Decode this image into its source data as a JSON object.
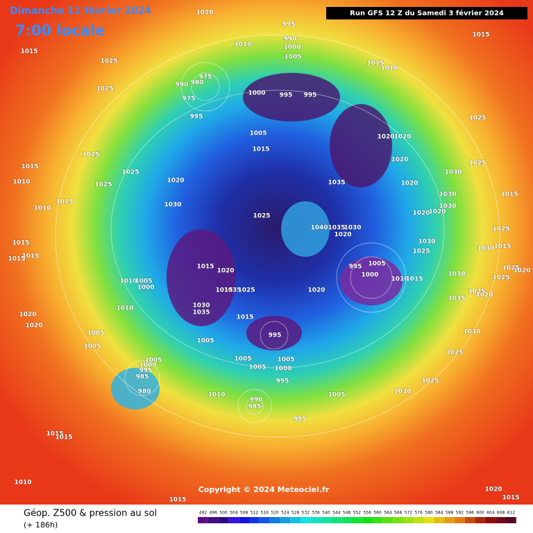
{
  "header": {
    "date": "Dimanche 11 février 2024",
    "time": "7:00 locale",
    "run": "Run GFS 12 Z du Samedi 3 février 2024"
  },
  "copyright": "Copyright © 2024 Meteociel.fr",
  "footer": {
    "title": "Géop. Z500 & pression au sol",
    "lead": "(+ 186h)"
  },
  "colorbar": {
    "ticks": [
      492,
      496,
      500,
      504,
      508,
      512,
      516,
      520,
      524,
      528,
      532,
      536,
      540,
      544,
      548,
      552,
      556,
      560,
      564,
      568,
      572,
      576,
      580,
      584,
      588,
      592,
      596,
      600,
      604,
      608,
      612
    ]
  },
  "pressure_labels": [
    1020,
    995,
    990,
    1000,
    1005,
    1010,
    1015,
    1025,
    1025,
    975,
    980,
    990,
    975,
    995,
    1000,
    995,
    995,
    1015,
    1010,
    1015,
    1025,
    1020,
    1020,
    1005,
    1015,
    1020,
    1025,
    1030,
    1035,
    1020,
    1025,
    1015,
    1010,
    1025,
    1025,
    1015,
    1010,
    1020,
    1030,
    1025,
    1030,
    1030,
    1015,
    1020,
    1020,
    1025,
    1040,
    1035,
    1030,
    1020,
    1030,
    1015,
    1015,
    1015,
    1030,
    1015,
    1025,
    1015,
    1020,
    995,
    1005,
    1000,
    1010,
    1005,
    1000,
    1035,
    1025,
    1015,
    1020,
    1010,
    1015,
    1030,
    1025,
    1020,
    1025,
    1035,
    1025,
    1020,
    1010,
    1030,
    1035,
    1015,
    995,
    1020,
    1020,
    1005,
    1005,
    1030,
    1005,
    1005,
    1005,
    1005,
    1000,
    1025,
    1005,
    1000,
    995,
    985,
    995,
    1025,
    980,
    1010,
    1030,
    1005,
    990,
    985,
    995,
    1015,
    1015,
    1010,
    1015,
    1015,
    1020
  ]
}
